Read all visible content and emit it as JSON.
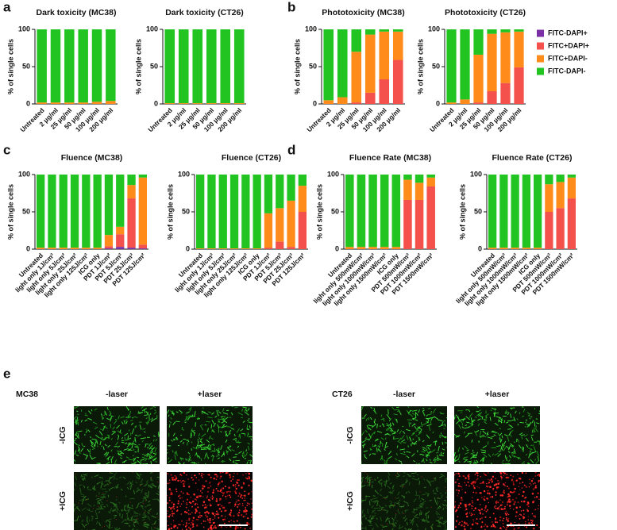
{
  "panel_labels": [
    "a",
    "b",
    "c",
    "d",
    "e"
  ],
  "chart_data": [
    {
      "type": "bar",
      "stacked": true,
      "title": "Dark toxicity (MC38)",
      "y_label": "% of single cells",
      "categories": [
        "Untreated",
        "2 μg/ml",
        "25 μg/ml",
        "50 μg/ml",
        "100 μg/ml",
        "200 μg/ml"
      ],
      "series": [
        {
          "name": "FITC-DAPI+",
          "color": "#7b2fa6",
          "values": [
            0,
            0,
            0,
            0,
            0,
            0
          ]
        },
        {
          "name": "FITC+DAPI+",
          "color": "#f4504c",
          "values": [
            0,
            0,
            0,
            0,
            0,
            0
          ]
        },
        {
          "name": "FITC+DAPI-",
          "color": "#ff8c1a",
          "values": [
            2,
            2,
            2,
            2,
            3,
            4
          ]
        },
        {
          "name": "FITC-DAPI-",
          "color": "#22c422",
          "values": [
            98,
            98,
            98,
            98,
            97,
            96
          ]
        }
      ],
      "ylim": [
        0,
        100
      ],
      "yticks": [
        0,
        50,
        100
      ],
      "legend": false
    },
    {
      "type": "bar",
      "stacked": true,
      "title": "Dark toxicity (CT26)",
      "y_label": "% of single cells",
      "categories": [
        "Untreated",
        "2 μg/ml",
        "25 μg/ml",
        "50 μg/ml",
        "100 μg/ml",
        "200 μg/ml"
      ],
      "series": [
        {
          "name": "FITC-DAPI+",
          "color": "#7b2fa6",
          "values": [
            0,
            0,
            0,
            0,
            0,
            0
          ]
        },
        {
          "name": "FITC+DAPI+",
          "color": "#f4504c",
          "values": [
            0,
            0,
            0,
            0,
            0,
            0
          ]
        },
        {
          "name": "FITC+DAPI-",
          "color": "#ff8c1a",
          "values": [
            1,
            1,
            1,
            1,
            1,
            1
          ]
        },
        {
          "name": "FITC-DAPI-",
          "color": "#22c422",
          "values": [
            99,
            99,
            99,
            99,
            99,
            99
          ]
        }
      ],
      "ylim": [
        0,
        100
      ],
      "yticks": [
        0,
        50,
        100
      ],
      "legend": false
    },
    {
      "type": "bar",
      "stacked": true,
      "title": "Phototoxicity (MC38)",
      "y_label": "% of single cells",
      "categories": [
        "Untreated",
        "2 μg/ml",
        "25 μg/ml",
        "50 μg/ml",
        "100 μg/ml",
        "200 μg/ml"
      ],
      "series": [
        {
          "name": "FITC-DAPI+",
          "color": "#7b2fa6",
          "values": [
            0,
            0,
            0,
            0,
            0,
            0
          ]
        },
        {
          "name": "FITC+DAPI+",
          "color": "#f4504c",
          "values": [
            0,
            0,
            2,
            15,
            33,
            59
          ]
        },
        {
          "name": "FITC+DAPI-",
          "color": "#ff8c1a",
          "values": [
            5,
            9,
            68,
            78,
            64,
            38
          ]
        },
        {
          "name": "FITC-DAPI-",
          "color": "#22c422",
          "values": [
            95,
            91,
            30,
            7,
            3,
            3
          ]
        }
      ],
      "ylim": [
        0,
        100
      ],
      "yticks": [
        0,
        50,
        100
      ],
      "legend": true
    },
    {
      "type": "bar",
      "stacked": true,
      "title": "Phototoxicity (CT26)",
      "y_label": "% of single cells",
      "categories": [
        "Untreated",
        "2 μg/ml",
        "25 μg/ml",
        "50 μg/ml",
        "100 μg/ml",
        "200 μg/ml"
      ],
      "series": [
        {
          "name": "FITC-DAPI+",
          "color": "#7b2fa6",
          "values": [
            0,
            0,
            0,
            0,
            0,
            0
          ]
        },
        {
          "name": "FITC+DAPI+",
          "color": "#f4504c",
          "values": [
            0,
            0,
            2,
            17,
            28,
            49
          ]
        },
        {
          "name": "FITC+DAPI-",
          "color": "#ff8c1a",
          "values": [
            2,
            6,
            64,
            77,
            68,
            48
          ]
        },
        {
          "name": "FITC-DAPI-",
          "color": "#22c422",
          "values": [
            98,
            94,
            34,
            6,
            4,
            3
          ]
        }
      ],
      "ylim": [
        0,
        100
      ],
      "yticks": [
        0,
        50,
        100
      ],
      "legend": false
    },
    {
      "type": "bar",
      "stacked": true,
      "title": "Fluence (MC38)",
      "y_label": "% of single cells",
      "categories": [
        "Untreated",
        "light only 1J/cm²",
        "light only 5J/cm²",
        "light only 25J/cm²",
        "light only 125J/cm²",
        "ICG only",
        "PDT 1J/cm²",
        "PDT 5J/cm²",
        "PDT 25J/cm²",
        "PDT 125J/cm²"
      ],
      "series": [
        {
          "name": "FITC-DAPI+",
          "color": "#7b2fa6",
          "values": [
            0,
            0,
            0,
            0,
            0,
            0,
            1,
            3,
            2,
            1
          ]
        },
        {
          "name": "FITC+DAPI+",
          "color": "#f4504c",
          "values": [
            0,
            0,
            0,
            0,
            0,
            0,
            3,
            17,
            66,
            5
          ]
        },
        {
          "name": "FITC+DAPI-",
          "color": "#ff8c1a",
          "values": [
            2,
            2,
            2,
            2,
            2,
            2,
            15,
            10,
            18,
            90
          ]
        },
        {
          "name": "FITC-DAPI-",
          "color": "#22c422",
          "values": [
            98,
            98,
            98,
            98,
            98,
            98,
            81,
            70,
            14,
            4
          ]
        }
      ],
      "ylim": [
        0,
        100
      ],
      "yticks": [
        0,
        50,
        100
      ],
      "legend": false
    },
    {
      "type": "bar",
      "stacked": true,
      "title": "Fluence (CT26)",
      "y_label": "% of single cells",
      "categories": [
        "Untreated",
        "light only 1J/cm²",
        "light only 5J/cm²",
        "light only 25J/cm²",
        "light only 125J/cm²",
        "ICG only",
        "PDT 1J/cm²",
        "PDT 5J/cm²",
        "PDT 25J/cm²",
        "PDT 125J/cm²"
      ],
      "series": [
        {
          "name": "FITC-DAPI+",
          "color": "#7b2fa6",
          "values": [
            0,
            0,
            0,
            0,
            0,
            0,
            0,
            0,
            0,
            0
          ]
        },
        {
          "name": "FITC+DAPI+",
          "color": "#f4504c",
          "values": [
            0,
            0,
            0,
            0,
            0,
            0,
            2,
            10,
            3,
            50
          ]
        },
        {
          "name": "FITC+DAPI-",
          "color": "#ff8c1a",
          "values": [
            1,
            1,
            1,
            1,
            1,
            1,
            46,
            45,
            62,
            35
          ]
        },
        {
          "name": "FITC-DAPI-",
          "color": "#22c422",
          "values": [
            99,
            99,
            99,
            99,
            99,
            99,
            52,
            45,
            35,
            15
          ]
        }
      ],
      "ylim": [
        0,
        100
      ],
      "yticks": [
        0,
        50,
        100
      ],
      "legend": false
    },
    {
      "type": "bar",
      "stacked": true,
      "title": "Fluence Rate (MC38)",
      "y_label": "% of single cells",
      "categories": [
        "Untreated",
        "light only 500mW/cm²",
        "light only 1000mW/cm²",
        "light only 1500mW/cm²",
        "ICG only",
        "PDT 500mW/cm²",
        "PDT 1000mW/cm²",
        "PDT 1500mW/cm²"
      ],
      "series": [
        {
          "name": "FITC-DAPI+",
          "color": "#7b2fa6",
          "values": [
            0,
            0,
            0,
            0,
            0,
            0,
            0,
            0
          ]
        },
        {
          "name": "FITC+DAPI+",
          "color": "#f4504c",
          "values": [
            0,
            0,
            0,
            0,
            0,
            66,
            66,
            84
          ]
        },
        {
          "name": "FITC+DAPI-",
          "color": "#ff8c1a",
          "values": [
            3,
            3,
            3,
            3,
            3,
            27,
            23,
            12
          ]
        },
        {
          "name": "FITC-DAPI-",
          "color": "#22c422",
          "values": [
            97,
            97,
            97,
            97,
            97,
            7,
            11,
            4
          ]
        }
      ],
      "ylim": [
        0,
        100
      ],
      "yticks": [
        0,
        50,
        100
      ],
      "legend": false
    },
    {
      "type": "bar",
      "stacked": true,
      "title": "Fluence Rate (CT26)",
      "y_label": "% of single cells",
      "categories": [
        "Untreated",
        "light only 500mW/cm²",
        "light only 1000mW/cm²",
        "light only 1500mW/cm²",
        "ICG only",
        "PDT 500mW/cm²",
        "PDT 1000mW/cm²",
        "PDT 1500mW/cm²"
      ],
      "series": [
        {
          "name": "FITC-DAPI+",
          "color": "#7b2fa6",
          "values": [
            0,
            0,
            0,
            0,
            0,
            0,
            0,
            0
          ]
        },
        {
          "name": "FITC+DAPI+",
          "color": "#f4504c",
          "values": [
            0,
            0,
            0,
            0,
            0,
            50,
            55,
            68
          ]
        },
        {
          "name": "FITC+DAPI-",
          "color": "#ff8c1a",
          "values": [
            2,
            2,
            2,
            2,
            2,
            37,
            35,
            28
          ]
        },
        {
          "name": "FITC-DAPI-",
          "color": "#22c422",
          "values": [
            98,
            98,
            98,
            98,
            98,
            13,
            10,
            4
          ]
        }
      ],
      "ylim": [
        0,
        100
      ],
      "yticks": [
        0,
        50,
        100
      ],
      "legend": false
    }
  ],
  "panel_e": {
    "cell_lines": [
      "MC38",
      "CT26"
    ],
    "columns": [
      "-laser",
      "+laser"
    ],
    "rows": [
      "-ICG",
      "+ICG"
    ]
  }
}
